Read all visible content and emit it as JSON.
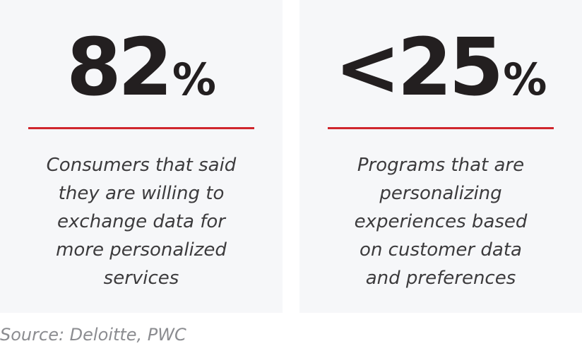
{
  "stats": [
    {
      "value": "82",
      "unit": "%",
      "description_lines": [
        "Consumers that said",
        "they are willing to",
        "exchange data for",
        "more personalized",
        "services"
      ]
    },
    {
      "value": "<25",
      "unit": "%",
      "description_lines": [
        "Programs that are",
        "personalizing",
        "experiences based",
        "on customer data",
        "and preferences"
      ]
    }
  ],
  "source": "Source: Deloitte, PWC",
  "colors": {
    "card_background": "#f6f7f9",
    "stat_text": "#231f20",
    "accent_line": "#d0262d",
    "description_text": "#3c3b3d",
    "source_text": "#8b8c90"
  }
}
